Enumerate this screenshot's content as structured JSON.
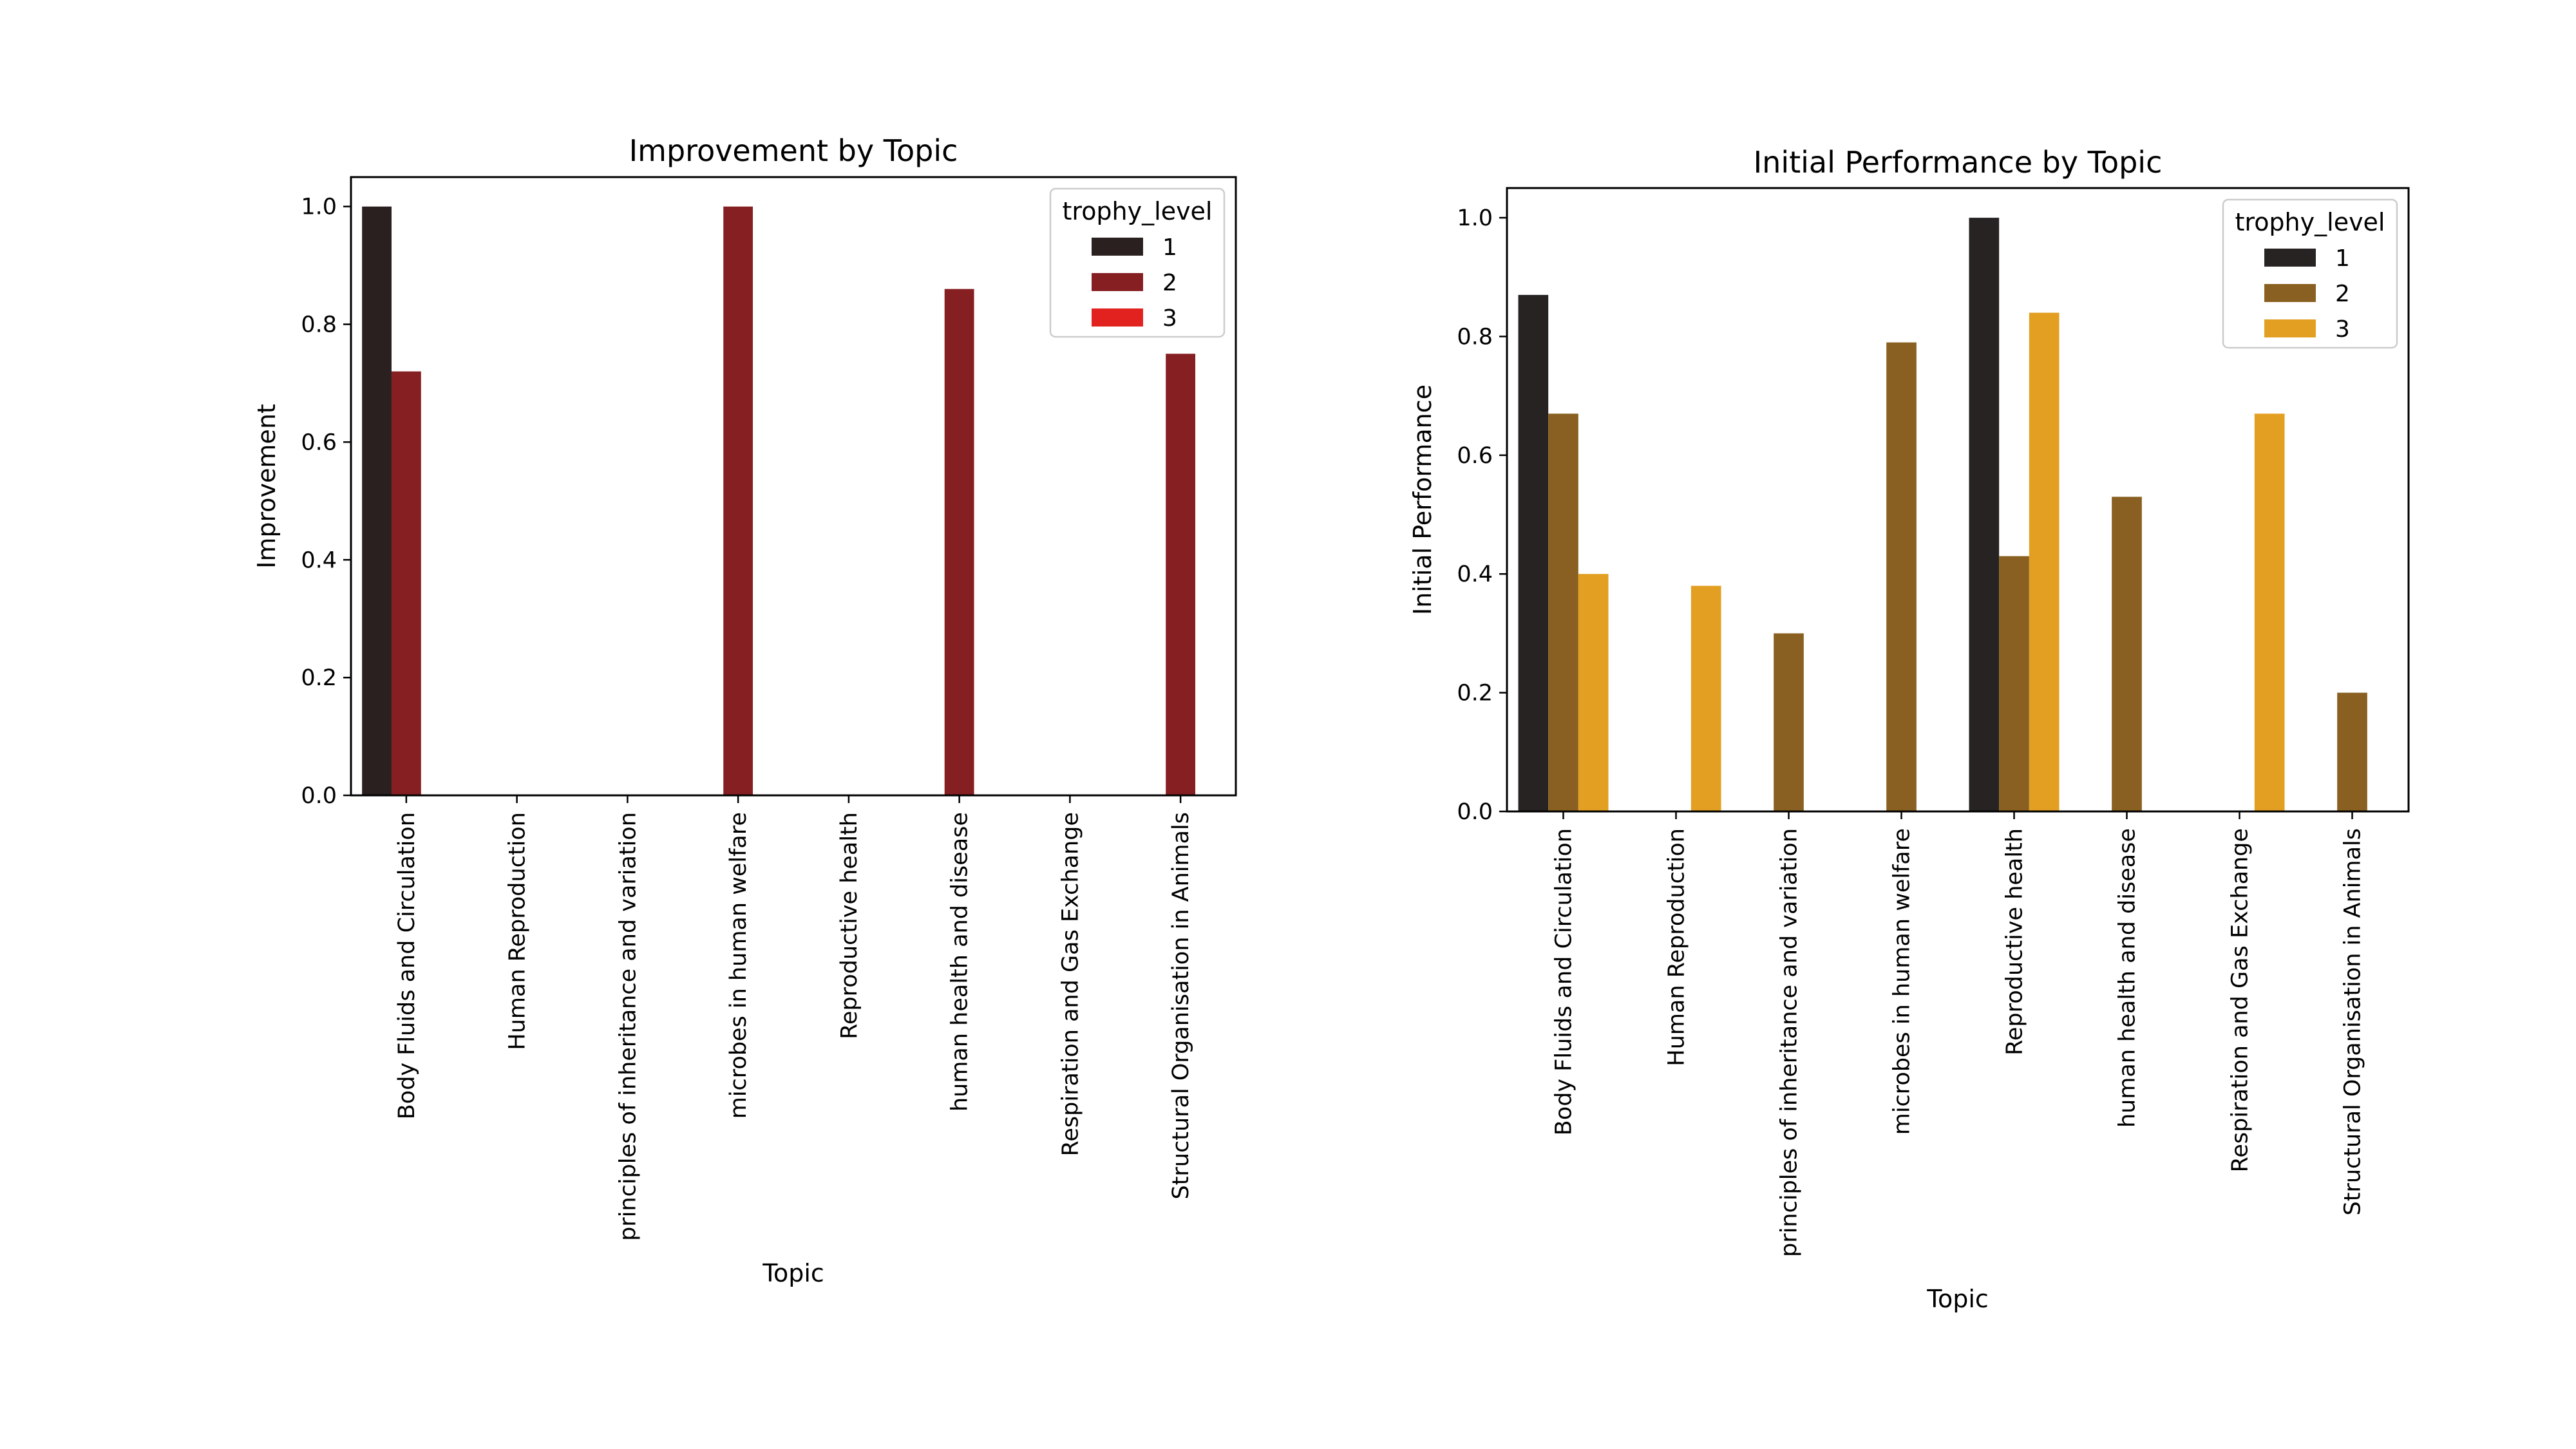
{
  "chart_data": [
    {
      "type": "bar",
      "title": "Improvement by Topic",
      "xlabel": "Topic",
      "ylabel": "Improvement",
      "ylim": [
        0,
        1.05
      ],
      "yticks": [
        "0.0",
        "0.2",
        "0.4",
        "0.6",
        "0.8",
        "1.0"
      ],
      "categories": [
        "Body Fluids and Circulation",
        "Human Reproduction",
        "principles of inheritance and variation",
        "microbes in human welfare",
        "Reproductive health",
        "human health and disease",
        "Respiration and Gas Exchange",
        "Structural Organisation in Animals"
      ],
      "legend_title": "trophy_level",
      "legend_position": "upper-right",
      "series": [
        {
          "name": "1",
          "color": "#2b2020",
          "values": [
            1.0,
            0,
            0,
            0,
            0,
            0,
            0,
            0
          ]
        },
        {
          "name": "2",
          "color": "#861f22",
          "values": [
            0.72,
            0,
            0,
            1.0,
            0,
            0.86,
            0,
            0.75
          ]
        },
        {
          "name": "3",
          "color": "#e2221f",
          "values": [
            0,
            0,
            0,
            0,
            0,
            0,
            0,
            0
          ]
        }
      ]
    },
    {
      "type": "bar",
      "title": "Initial Performance by Topic",
      "xlabel": "Topic",
      "ylabel": "Initial Performance",
      "ylim": [
        0,
        1.05
      ],
      "yticks": [
        "0.0",
        "0.2",
        "0.4",
        "0.6",
        "0.8",
        "1.0"
      ],
      "categories": [
        "Body Fluids and Circulation",
        "Human Reproduction",
        "principles of inheritance and variation",
        "microbes in human welfare",
        "Reproductive health",
        "human health and disease",
        "Respiration and Gas Exchange",
        "Structural Organisation in Animals"
      ],
      "legend_title": "trophy_level",
      "legend_position": "upper-right",
      "series": [
        {
          "name": "1",
          "color": "#272323",
          "values": [
            0.87,
            0,
            0,
            0,
            1.0,
            0,
            0,
            0
          ]
        },
        {
          "name": "2",
          "color": "#896021",
          "values": [
            0.67,
            0,
            0.3,
            0.79,
            0.43,
            0.53,
            0,
            0.2
          ]
        },
        {
          "name": "3",
          "color": "#e29f22",
          "values": [
            0.4,
            0.38,
            0,
            0,
            0.84,
            0,
            0.67,
            0
          ]
        }
      ]
    }
  ]
}
